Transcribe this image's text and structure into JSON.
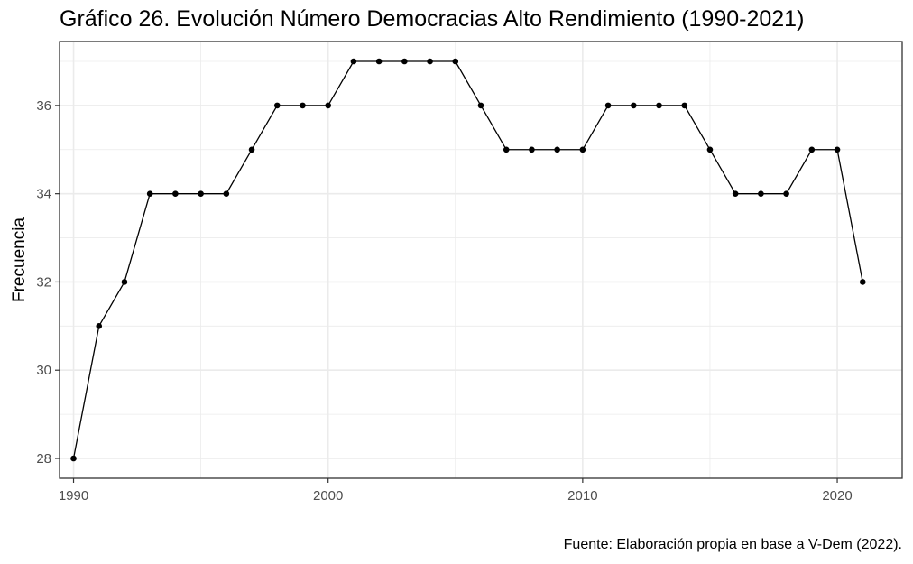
{
  "chart_data": {
    "type": "line",
    "title": "Gráfico 26. Evolución Número Democracias Alto Rendimiento (1990-2021)",
    "xlabel": "",
    "ylabel": "Frecuencia",
    "caption": "Fuente: Elaboración propia en base a V-Dem (2022).",
    "x": [
      1990,
      1991,
      1992,
      1993,
      1994,
      1995,
      1996,
      1997,
      1998,
      1999,
      2000,
      2001,
      2002,
      2003,
      2004,
      2005,
      2006,
      2007,
      2008,
      2009,
      2010,
      2011,
      2012,
      2013,
      2014,
      2015,
      2016,
      2017,
      2018,
      2019,
      2020,
      2021
    ],
    "series": [
      {
        "values": [
          28,
          31,
          32,
          34,
          34,
          34,
          34,
          35,
          36,
          36,
          36,
          37,
          37,
          37,
          37,
          37,
          36,
          35,
          35,
          35,
          35,
          36,
          36,
          36,
          36,
          35,
          34,
          34,
          34,
          35,
          35,
          32
        ]
      }
    ],
    "xlim": [
      1989.45,
      2022.55
    ],
    "ylim": [
      27.55,
      37.45
    ],
    "xticks": [
      1990,
      2000,
      2010,
      2020
    ],
    "yticks": [
      28,
      30,
      32,
      34,
      36
    ],
    "grid": true,
    "legend": "none",
    "colors": {
      "line": "#000000",
      "grid": "#ebebeb",
      "panel_border": "#333333"
    }
  }
}
